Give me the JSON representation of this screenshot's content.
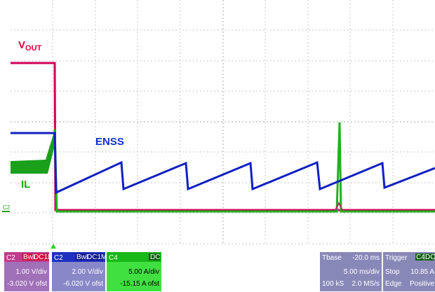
{
  "traces": {
    "vout": {
      "main": "V",
      "sub": "OUT"
    },
    "enss": "ENSS",
    "il": "IL",
    "ground_marker": "C2"
  },
  "channels": [
    {
      "name": "C2",
      "tags": [
        "BwL",
        "DC1M"
      ],
      "scale": "1.00 V/div",
      "offset": "-3.020 V ofst"
    },
    {
      "name": "C2",
      "tags": [
        "BwL",
        "DC1M"
      ],
      "scale": "2.00 V/div",
      "offset": "-6.020 V ofst"
    },
    {
      "name": "C4",
      "tags": [
        "DC"
      ],
      "scale": "5.00 A/div",
      "offset": "-15.15 A ofst"
    }
  ],
  "timebase": {
    "title": "Tbase",
    "delay": "-20.0 ms",
    "per_div": "5.00 ms/div",
    "samples": "100 kS",
    "rate": "2.0 MS/s"
  },
  "trigger": {
    "title": "Trigger",
    "source": "C4",
    "coupling": "DC",
    "mode": "Stop",
    "level": "10.85 A",
    "type": "Edge",
    "slope": "Positive"
  }
}
